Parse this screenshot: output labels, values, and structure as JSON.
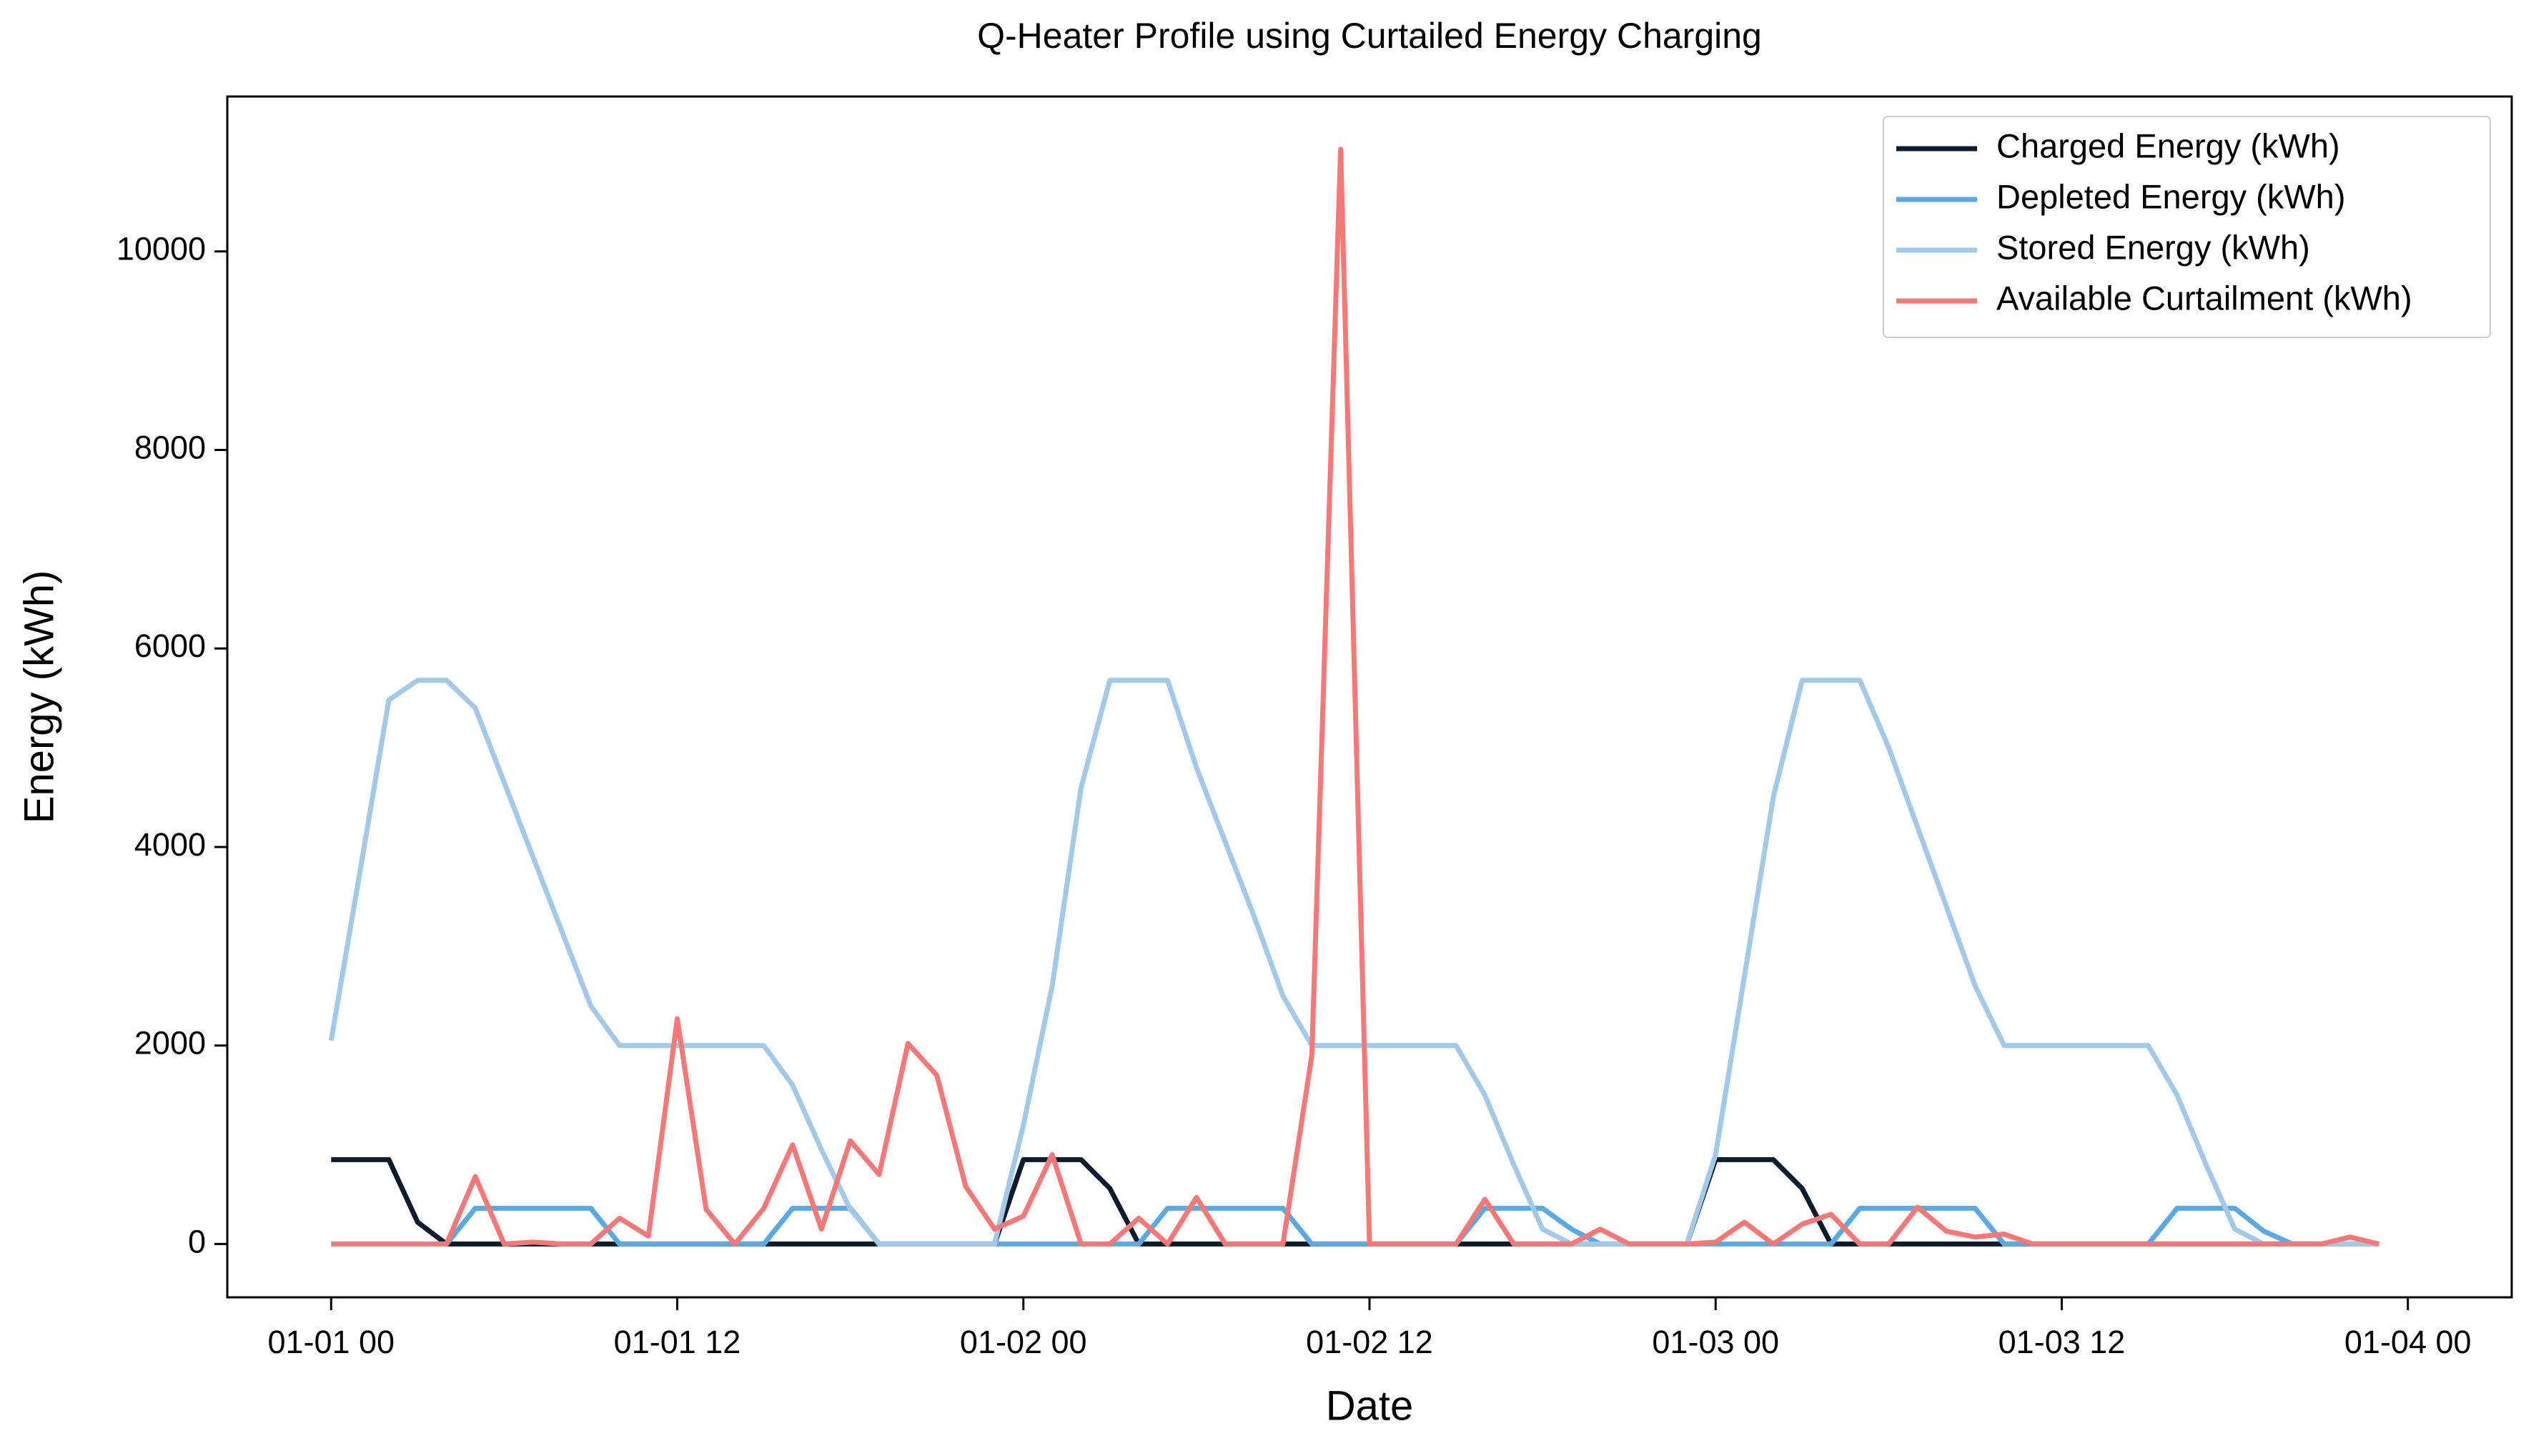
{
  "chart_data": {
    "type": "line",
    "title": "Q-Heater Profile using Curtailed Energy Charging",
    "x_label": "Date",
    "y_label": "Energy (kWh)",
    "x": [
      "01-01 00",
      "01-01 01",
      "01-01 02",
      "01-01 03",
      "01-01 04",
      "01-01 05",
      "01-01 06",
      "01-01 07",
      "01-01 08",
      "01-01 09",
      "01-01 10",
      "01-01 11",
      "01-01 12",
      "01-01 13",
      "01-01 14",
      "01-01 15",
      "01-01 16",
      "01-01 17",
      "01-01 18",
      "01-01 19",
      "01-01 20",
      "01-01 21",
      "01-01 22",
      "01-01 23",
      "01-02 00",
      "01-02 01",
      "01-02 02",
      "01-02 03",
      "01-02 04",
      "01-02 05",
      "01-02 06",
      "01-02 07",
      "01-02 08",
      "01-02 09",
      "01-02 10",
      "01-02 11",
      "01-02 12",
      "01-02 13",
      "01-02 14",
      "01-02 15",
      "01-02 16",
      "01-02 17",
      "01-02 18",
      "01-02 19",
      "01-02 20",
      "01-02 21",
      "01-02 22",
      "01-02 23",
      "01-03 00",
      "01-03 01",
      "01-03 02",
      "01-03 03",
      "01-03 04",
      "01-03 05",
      "01-03 06",
      "01-03 07",
      "01-03 08",
      "01-03 09",
      "01-03 10",
      "01-03 11",
      "01-03 12",
      "01-03 13",
      "01-03 14",
      "01-03 15",
      "01-03 16",
      "01-03 17",
      "01-03 18",
      "01-03 19",
      "01-03 20",
      "01-03 21",
      "01-03 22",
      "01-03 23"
    ],
    "series": [
      {
        "name": "Charged Energy (kWh)",
        "color": "#0d1b2e",
        "values": [
          850,
          850,
          850,
          220,
          0,
          0,
          0,
          0,
          0,
          0,
          0,
          0,
          0,
          0,
          0,
          0,
          0,
          0,
          0,
          0,
          0,
          0,
          0,
          0,
          850,
          850,
          850,
          560,
          0,
          0,
          0,
          0,
          0,
          0,
          0,
          0,
          0,
          0,
          0,
          0,
          0,
          0,
          0,
          0,
          0,
          0,
          0,
          0,
          850,
          850,
          850,
          560,
          0,
          0,
          0,
          0,
          0,
          0,
          0,
          0,
          0,
          0,
          0,
          0,
          0,
          0,
          0,
          0,
          0,
          0,
          0,
          0
        ]
      },
      {
        "name": "Depleted Energy (kWh)",
        "color": "#5aa9e6",
        "values": [
          0,
          0,
          0,
          0,
          0,
          360,
          360,
          360,
          360,
          360,
          0,
          0,
          0,
          0,
          0,
          0,
          360,
          360,
          360,
          0,
          0,
          0,
          0,
          0,
          0,
          0,
          0,
          0,
          0,
          360,
          360,
          360,
          360,
          360,
          0,
          0,
          0,
          0,
          0,
          0,
          360,
          360,
          360,
          150,
          0,
          0,
          0,
          0,
          0,
          0,
          0,
          0,
          0,
          360,
          360,
          360,
          360,
          360,
          0,
          0,
          0,
          0,
          0,
          0,
          360,
          360,
          360,
          130,
          0,
          0,
          0,
          0
        ]
      },
      {
        "name": "Stored Energy (kWh)",
        "color": "#a3c9ea",
        "values": [
          2050,
          3750,
          5480,
          5680,
          5680,
          5400,
          4650,
          3900,
          3150,
          2400,
          2000,
          2000,
          2000,
          2000,
          2000,
          2000,
          1600,
          950,
          350,
          0,
          0,
          0,
          0,
          0,
          1200,
          2600,
          4600,
          5680,
          5680,
          5680,
          4800,
          4050,
          3300,
          2500,
          2000,
          2000,
          2000,
          2000,
          2000,
          2000,
          1500,
          800,
          150,
          0,
          0,
          0,
          0,
          0,
          900,
          2700,
          4500,
          5680,
          5680,
          5680,
          5000,
          4200,
          3400,
          2600,
          2000,
          2000,
          2000,
          2000,
          2000,
          2000,
          1500,
          800,
          150,
          0,
          0,
          0,
          0,
          0
        ]
      },
      {
        "name": "Available Curtailment (kWh)",
        "color": "#f87878",
        "values": [
          0,
          0,
          0,
          0,
          0,
          680,
          0,
          20,
          0,
          0,
          260,
          80,
          2270,
          350,
          0,
          360,
          1000,
          150,
          1040,
          700,
          2020,
          1700,
          580,
          150,
          280,
          900,
          0,
          0,
          260,
          0,
          470,
          0,
          0,
          0,
          1900,
          11030,
          0,
          0,
          0,
          0,
          450,
          0,
          0,
          0,
          150,
          0,
          0,
          0,
          20,
          220,
          0,
          200,
          300,
          0,
          0,
          370,
          130,
          70,
          100,
          0,
          0,
          0,
          0,
          0,
          0,
          0,
          0,
          0,
          0,
          0,
          70,
          0
        ]
      }
    ],
    "ylim": [
      -537,
      11561
    ],
    "yticks": [
      0,
      2000,
      4000,
      6000,
      8000,
      10000
    ],
    "xticks": [
      "01-01 00",
      "01-01 12",
      "01-02 00",
      "01-02 12",
      "01-03 00",
      "01-03 12",
      "01-04 00"
    ],
    "legend": "upper right",
    "grid": false
  }
}
